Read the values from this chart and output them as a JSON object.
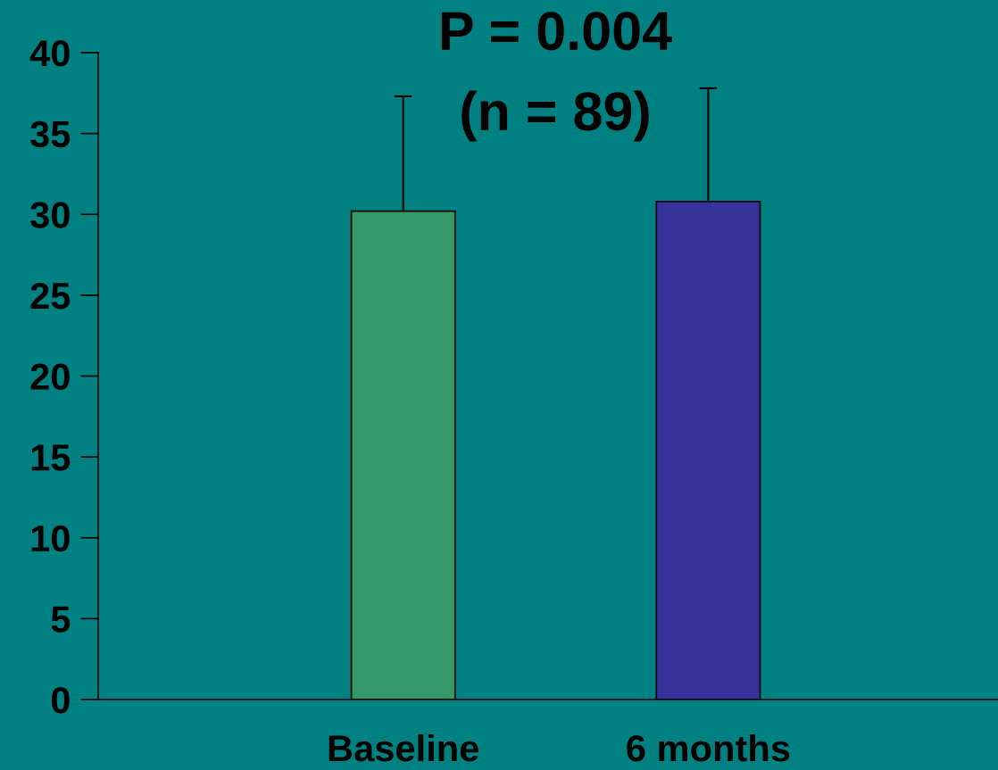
{
  "chart_data": {
    "type": "bar",
    "categories": [
      "Baseline",
      "6 months"
    ],
    "values": [
      30.2,
      30.8
    ],
    "colors": [
      "#339966",
      "#333399"
    ],
    "errors": [
      7.1,
      7.0
    ],
    "ylim": [
      0,
      40
    ],
    "yticks": [
      0,
      5,
      10,
      15,
      20,
      25,
      30,
      35,
      40
    ],
    "annotations": [
      "P = 0.004",
      "(n = 89)"
    ],
    "grid": false,
    "legend": false
  }
}
